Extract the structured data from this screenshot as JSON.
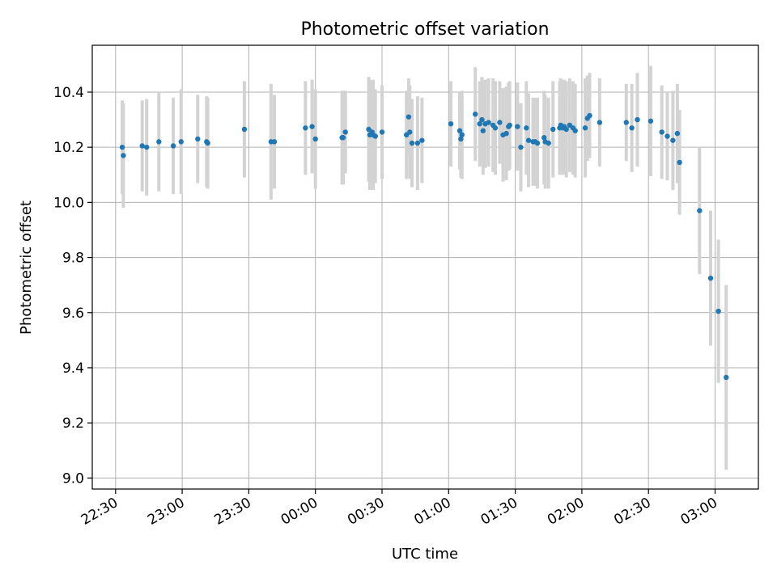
{
  "chart_data": {
    "type": "scatter",
    "title": "Photometric offset variation",
    "xlabel": "UTC time",
    "ylabel": "Photometric offset",
    "x_ticks": [
      "22:30",
      "23:00",
      "23:30",
      "00:00",
      "00:30",
      "01:00",
      "01:30",
      "02:00",
      "02:30",
      "03:00"
    ],
    "x_tick_minutes": [
      0,
      30,
      60,
      90,
      120,
      150,
      180,
      210,
      240,
      270
    ],
    "xlim": [
      -10.5,
      289.5
    ],
    "y_ticks": [
      "9.0",
      "9.2",
      "9.4",
      "9.6",
      "9.8",
      "10.0",
      "10.2",
      "10.4"
    ],
    "y_tick_values": [
      9.0,
      9.2,
      9.4,
      9.6,
      9.8,
      10.0,
      10.2,
      10.4
    ],
    "ylim": [
      8.96,
      10.57
    ],
    "grid": true,
    "point_color": "#1f77b4",
    "errorbar_color": "#d3d3d3",
    "x_axis_start_time": "22:30",
    "series": [
      {
        "points": [
          {
            "x": 3,
            "y": 10.2,
            "err": 0.17
          },
          {
            "x": 3.5,
            "y": 10.17,
            "err": 0.19
          },
          {
            "x": 12,
            "y": 10.205,
            "err": 0.165
          },
          {
            "x": 14,
            "y": 10.2,
            "err": 0.175
          },
          {
            "x": 19.5,
            "y": 10.22,
            "err": 0.18
          },
          {
            "x": 26,
            "y": 10.205,
            "err": 0.175
          },
          {
            "x": 29.5,
            "y": 10.22,
            "err": 0.19
          },
          {
            "x": 37,
            "y": 10.23,
            "err": 0.16
          },
          {
            "x": 41,
            "y": 10.22,
            "err": 0.165
          },
          {
            "x": 41.5,
            "y": 10.215,
            "err": 0.165
          },
          {
            "x": 58,
            "y": 10.265,
            "err": 0.175
          },
          {
            "x": 70,
            "y": 10.22,
            "err": 0.21
          },
          {
            "x": 71.5,
            "y": 10.22,
            "err": 0.17
          },
          {
            "x": 85.5,
            "y": 10.27,
            "err": 0.17
          },
          {
            "x": 88.5,
            "y": 10.275,
            "err": 0.17
          },
          {
            "x": 90,
            "y": 10.23,
            "err": 0.18
          },
          {
            "x": 102,
            "y": 10.235,
            "err": 0.17
          },
          {
            "x": 102.5,
            "y": 10.235,
            "err": 0.17
          },
          {
            "x": 103.5,
            "y": 10.255,
            "err": 0.15
          },
          {
            "x": 114,
            "y": 10.265,
            "err": 0.19
          },
          {
            "x": 114.5,
            "y": 10.245,
            "err": 0.2
          },
          {
            "x": 115.5,
            "y": 10.255,
            "err": 0.18
          },
          {
            "x": 116,
            "y": 10.245,
            "err": 0.2
          },
          {
            "x": 117,
            "y": 10.24,
            "err": 0.17
          },
          {
            "x": 120,
            "y": 10.255,
            "err": 0.17
          },
          {
            "x": 131,
            "y": 10.245,
            "err": 0.16
          },
          {
            "x": 132,
            "y": 10.31,
            "err": 0.14
          },
          {
            "x": 132.5,
            "y": 10.255,
            "err": 0.17
          },
          {
            "x": 133.5,
            "y": 10.215,
            "err": 0.16
          },
          {
            "x": 136,
            "y": 10.215,
            "err": 0.17
          },
          {
            "x": 138,
            "y": 10.225,
            "err": 0.155
          },
          {
            "x": 151,
            "y": 10.285,
            "err": 0.155
          },
          {
            "x": 155,
            "y": 10.26,
            "err": 0.14
          },
          {
            "x": 155.5,
            "y": 10.23,
            "err": 0.14
          },
          {
            "x": 156,
            "y": 10.245,
            "err": 0.16
          },
          {
            "x": 162,
            "y": 10.32,
            "err": 0.17
          },
          {
            "x": 164,
            "y": 10.285,
            "err": 0.155
          },
          {
            "x": 165,
            "y": 10.3,
            "err": 0.155
          },
          {
            "x": 165.5,
            "y": 10.26,
            "err": 0.16
          },
          {
            "x": 166.5,
            "y": 10.285,
            "err": 0.16
          },
          {
            "x": 168,
            "y": 10.29,
            "err": 0.16
          },
          {
            "x": 170,
            "y": 10.28,
            "err": 0.17
          },
          {
            "x": 171,
            "y": 10.27,
            "err": 0.17
          },
          {
            "x": 173,
            "y": 10.29,
            "err": 0.15
          },
          {
            "x": 174.5,
            "y": 10.245,
            "err": 0.17
          },
          {
            "x": 176,
            "y": 10.25,
            "err": 0.17
          },
          {
            "x": 177,
            "y": 10.275,
            "err": 0.16
          },
          {
            "x": 177.5,
            "y": 10.28,
            "err": 0.16
          },
          {
            "x": 181,
            "y": 10.275,
            "err": 0.16
          },
          {
            "x": 182.5,
            "y": 10.2,
            "err": 0.16
          },
          {
            "x": 185,
            "y": 10.27,
            "err": 0.17
          },
          {
            "x": 186,
            "y": 10.225,
            "err": 0.17
          },
          {
            "x": 188,
            "y": 10.22,
            "err": 0.16
          },
          {
            "x": 189,
            "y": 10.22,
            "err": 0.16
          },
          {
            "x": 190,
            "y": 10.215,
            "err": 0.165
          },
          {
            "x": 193,
            "y": 10.235,
            "err": 0.17
          },
          {
            "x": 193.5,
            "y": 10.22,
            "err": 0.17
          },
          {
            "x": 195,
            "y": 10.215,
            "err": 0.165
          },
          {
            "x": 197,
            "y": 10.265,
            "err": 0.175
          },
          {
            "x": 200,
            "y": 10.27,
            "err": 0.17
          },
          {
            "x": 200.5,
            "y": 10.28,
            "err": 0.17
          },
          {
            "x": 201.5,
            "y": 10.27,
            "err": 0.17
          },
          {
            "x": 202,
            "y": 10.275,
            "err": 0.17
          },
          {
            "x": 203,
            "y": 10.265,
            "err": 0.175
          },
          {
            "x": 204.5,
            "y": 10.28,
            "err": 0.17
          },
          {
            "x": 206,
            "y": 10.27,
            "err": 0.17
          },
          {
            "x": 207,
            "y": 10.26,
            "err": 0.17
          },
          {
            "x": 211.5,
            "y": 10.27,
            "err": 0.18
          },
          {
            "x": 212.5,
            "y": 10.305,
            "err": 0.155
          },
          {
            "x": 213.5,
            "y": 10.315,
            "err": 0.155
          },
          {
            "x": 218,
            "y": 10.29,
            "err": 0.16
          },
          {
            "x": 230,
            "y": 10.29,
            "err": 0.14
          },
          {
            "x": 232.5,
            "y": 10.27,
            "err": 0.16
          },
          {
            "x": 235,
            "y": 10.3,
            "err": 0.17
          },
          {
            "x": 241,
            "y": 10.295,
            "err": 0.2
          },
          {
            "x": 246,
            "y": 10.255,
            "err": 0.17
          },
          {
            "x": 248.5,
            "y": 10.24,
            "err": 0.16
          },
          {
            "x": 251,
            "y": 10.225,
            "err": 0.18
          },
          {
            "x": 253,
            "y": 10.25,
            "err": 0.18
          },
          {
            "x": 254,
            "y": 10.145,
            "err": 0.19
          },
          {
            "x": 263,
            "y": 9.97,
            "err": 0.23
          },
          {
            "x": 268,
            "y": 9.725,
            "err": 0.245
          },
          {
            "x": 271.5,
            "y": 9.605,
            "err": 0.26
          },
          {
            "x": 275,
            "y": 9.365,
            "err": 0.335
          }
        ]
      }
    ]
  }
}
